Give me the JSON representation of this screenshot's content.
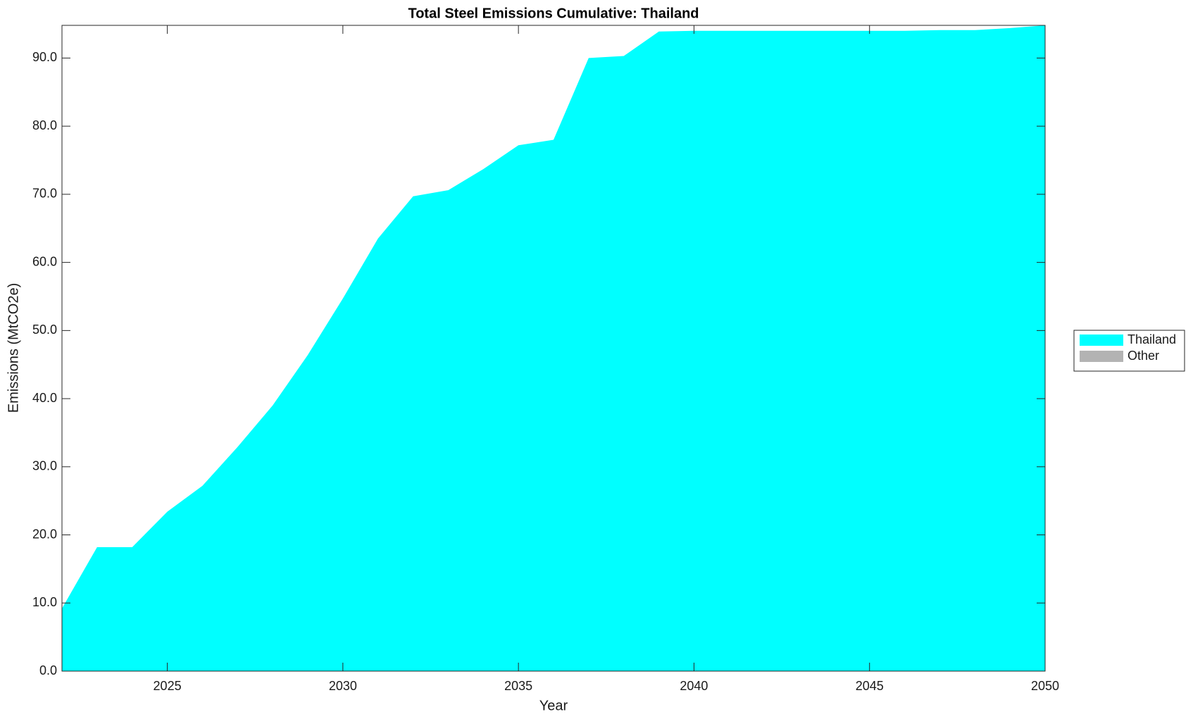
{
  "chart_data": {
    "type": "stacked-area",
    "title": "Total Steel Emissions Cumulative: Thailand",
    "xlabel": "Year",
    "ylabel": "Emissions (MtCO2e)",
    "x": [
      2022,
      2023,
      2024,
      2025,
      2026,
      2027,
      2028,
      2029,
      2030,
      2031,
      2032,
      2033,
      2034,
      2035,
      2036,
      2037,
      2038,
      2039,
      2040,
      2041,
      2042,
      2043,
      2044,
      2045,
      2046,
      2047,
      2048,
      2049,
      2050
    ],
    "series": [
      {
        "name": "Thailand",
        "color": "#00ffff",
        "values": [
          9.2,
          18.2,
          18.2,
          23.4,
          27.2,
          32.9,
          39.0,
          46.4,
          54.7,
          63.5,
          69.7,
          70.6,
          73.7,
          77.2,
          78.0,
          90.0,
          90.3,
          93.9,
          94.0,
          94.0,
          94.0,
          94.0,
          94.0,
          94.0,
          94.0,
          94.1,
          94.1,
          94.4,
          94.8
        ]
      },
      {
        "name": "Other",
        "color": "#b3b3b3",
        "values": [
          0,
          0,
          0,
          0,
          0,
          0,
          0,
          0,
          0,
          0,
          0,
          0,
          0,
          0,
          0,
          0,
          0,
          0,
          0,
          0,
          0,
          0,
          0,
          0,
          0,
          0,
          0,
          0,
          0
        ]
      }
    ],
    "xlim": [
      2022,
      2050
    ],
    "ylim": [
      0,
      94.8
    ],
    "xticks": [
      2025,
      2030,
      2035,
      2040,
      2045,
      2050
    ],
    "yticks": [
      {
        "value": 0,
        "label": "0.0"
      },
      {
        "value": 10,
        "label": "10.0"
      },
      {
        "value": 20,
        "label": "20.0"
      },
      {
        "value": 30,
        "label": "30.0"
      },
      {
        "value": 40,
        "label": "40.0"
      },
      {
        "value": 50,
        "label": "50.0"
      },
      {
        "value": 60,
        "label": "60.0"
      },
      {
        "value": 70,
        "label": "70.0"
      },
      {
        "value": 80,
        "label": "80.0"
      },
      {
        "value": 90,
        "label": "90.0"
      }
    ],
    "legend": "outside-right"
  }
}
